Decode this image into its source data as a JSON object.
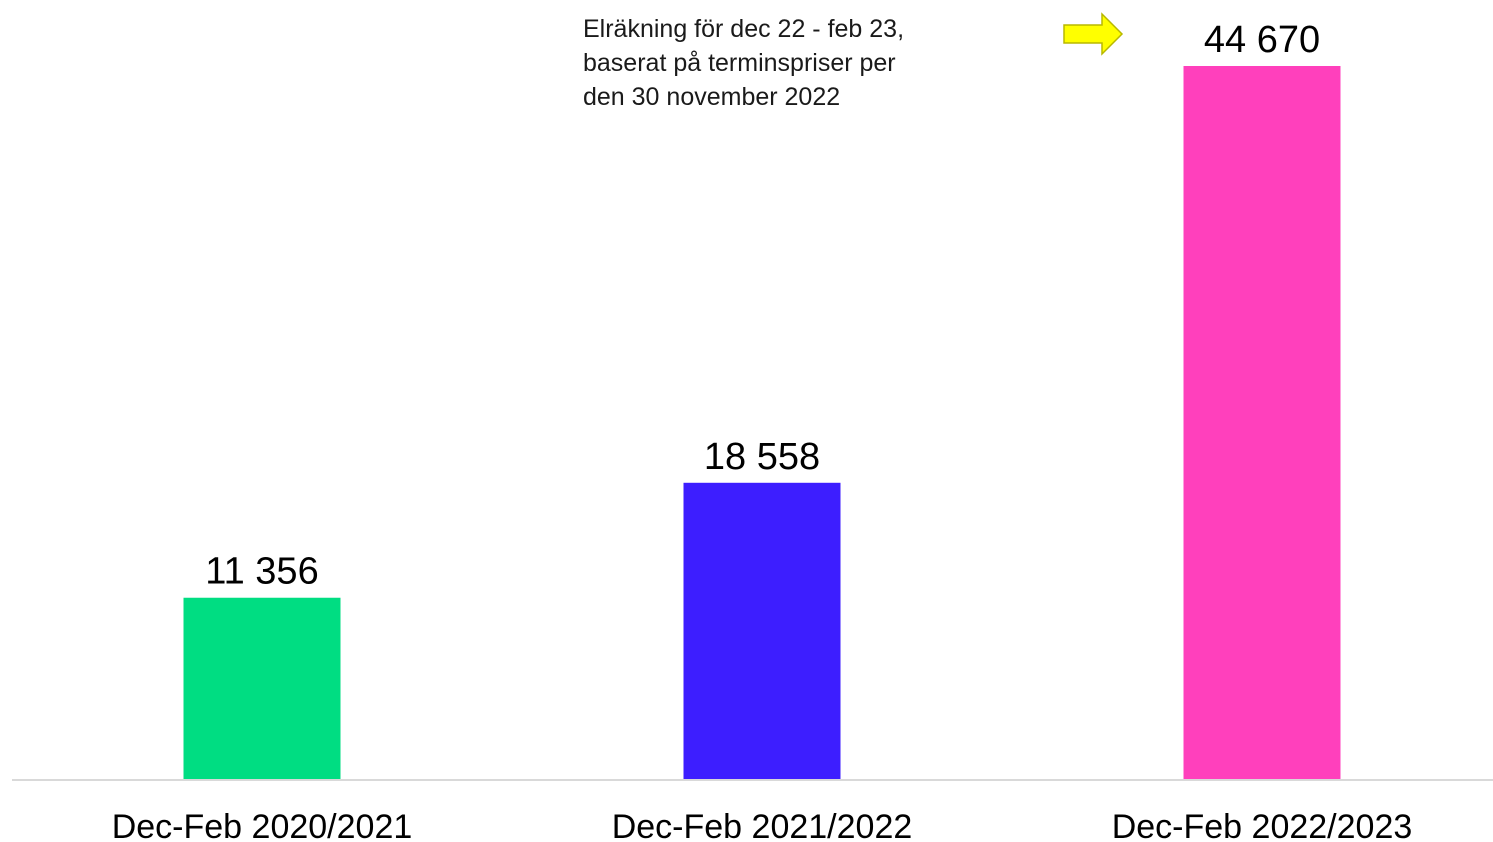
{
  "chart_data": {
    "type": "bar",
    "categories": [
      "Dec-Feb 2020/2021",
      "Dec-Feb 2021/2022",
      "Dec-Feb 2022/2023"
    ],
    "values": [
      11356,
      18558,
      44670
    ],
    "value_labels": [
      "11 356",
      "18 558",
      "44 670"
    ],
    "bar_colors": [
      "#00DD82",
      "#3D1EFF",
      "#FF40BC"
    ],
    "ylim": [
      0,
      50000
    ],
    "grid": false,
    "axis_color": "#D9D9D9"
  },
  "annotation": {
    "lines": [
      "Elräkning för dec 22 - feb 23,",
      "baserat på terminspriser per",
      "den 30 november 2022"
    ],
    "arrow_icon": "right-arrow-icon",
    "arrow_fill": "#FFFF00",
    "arrow_stroke": "#B8B800"
  }
}
